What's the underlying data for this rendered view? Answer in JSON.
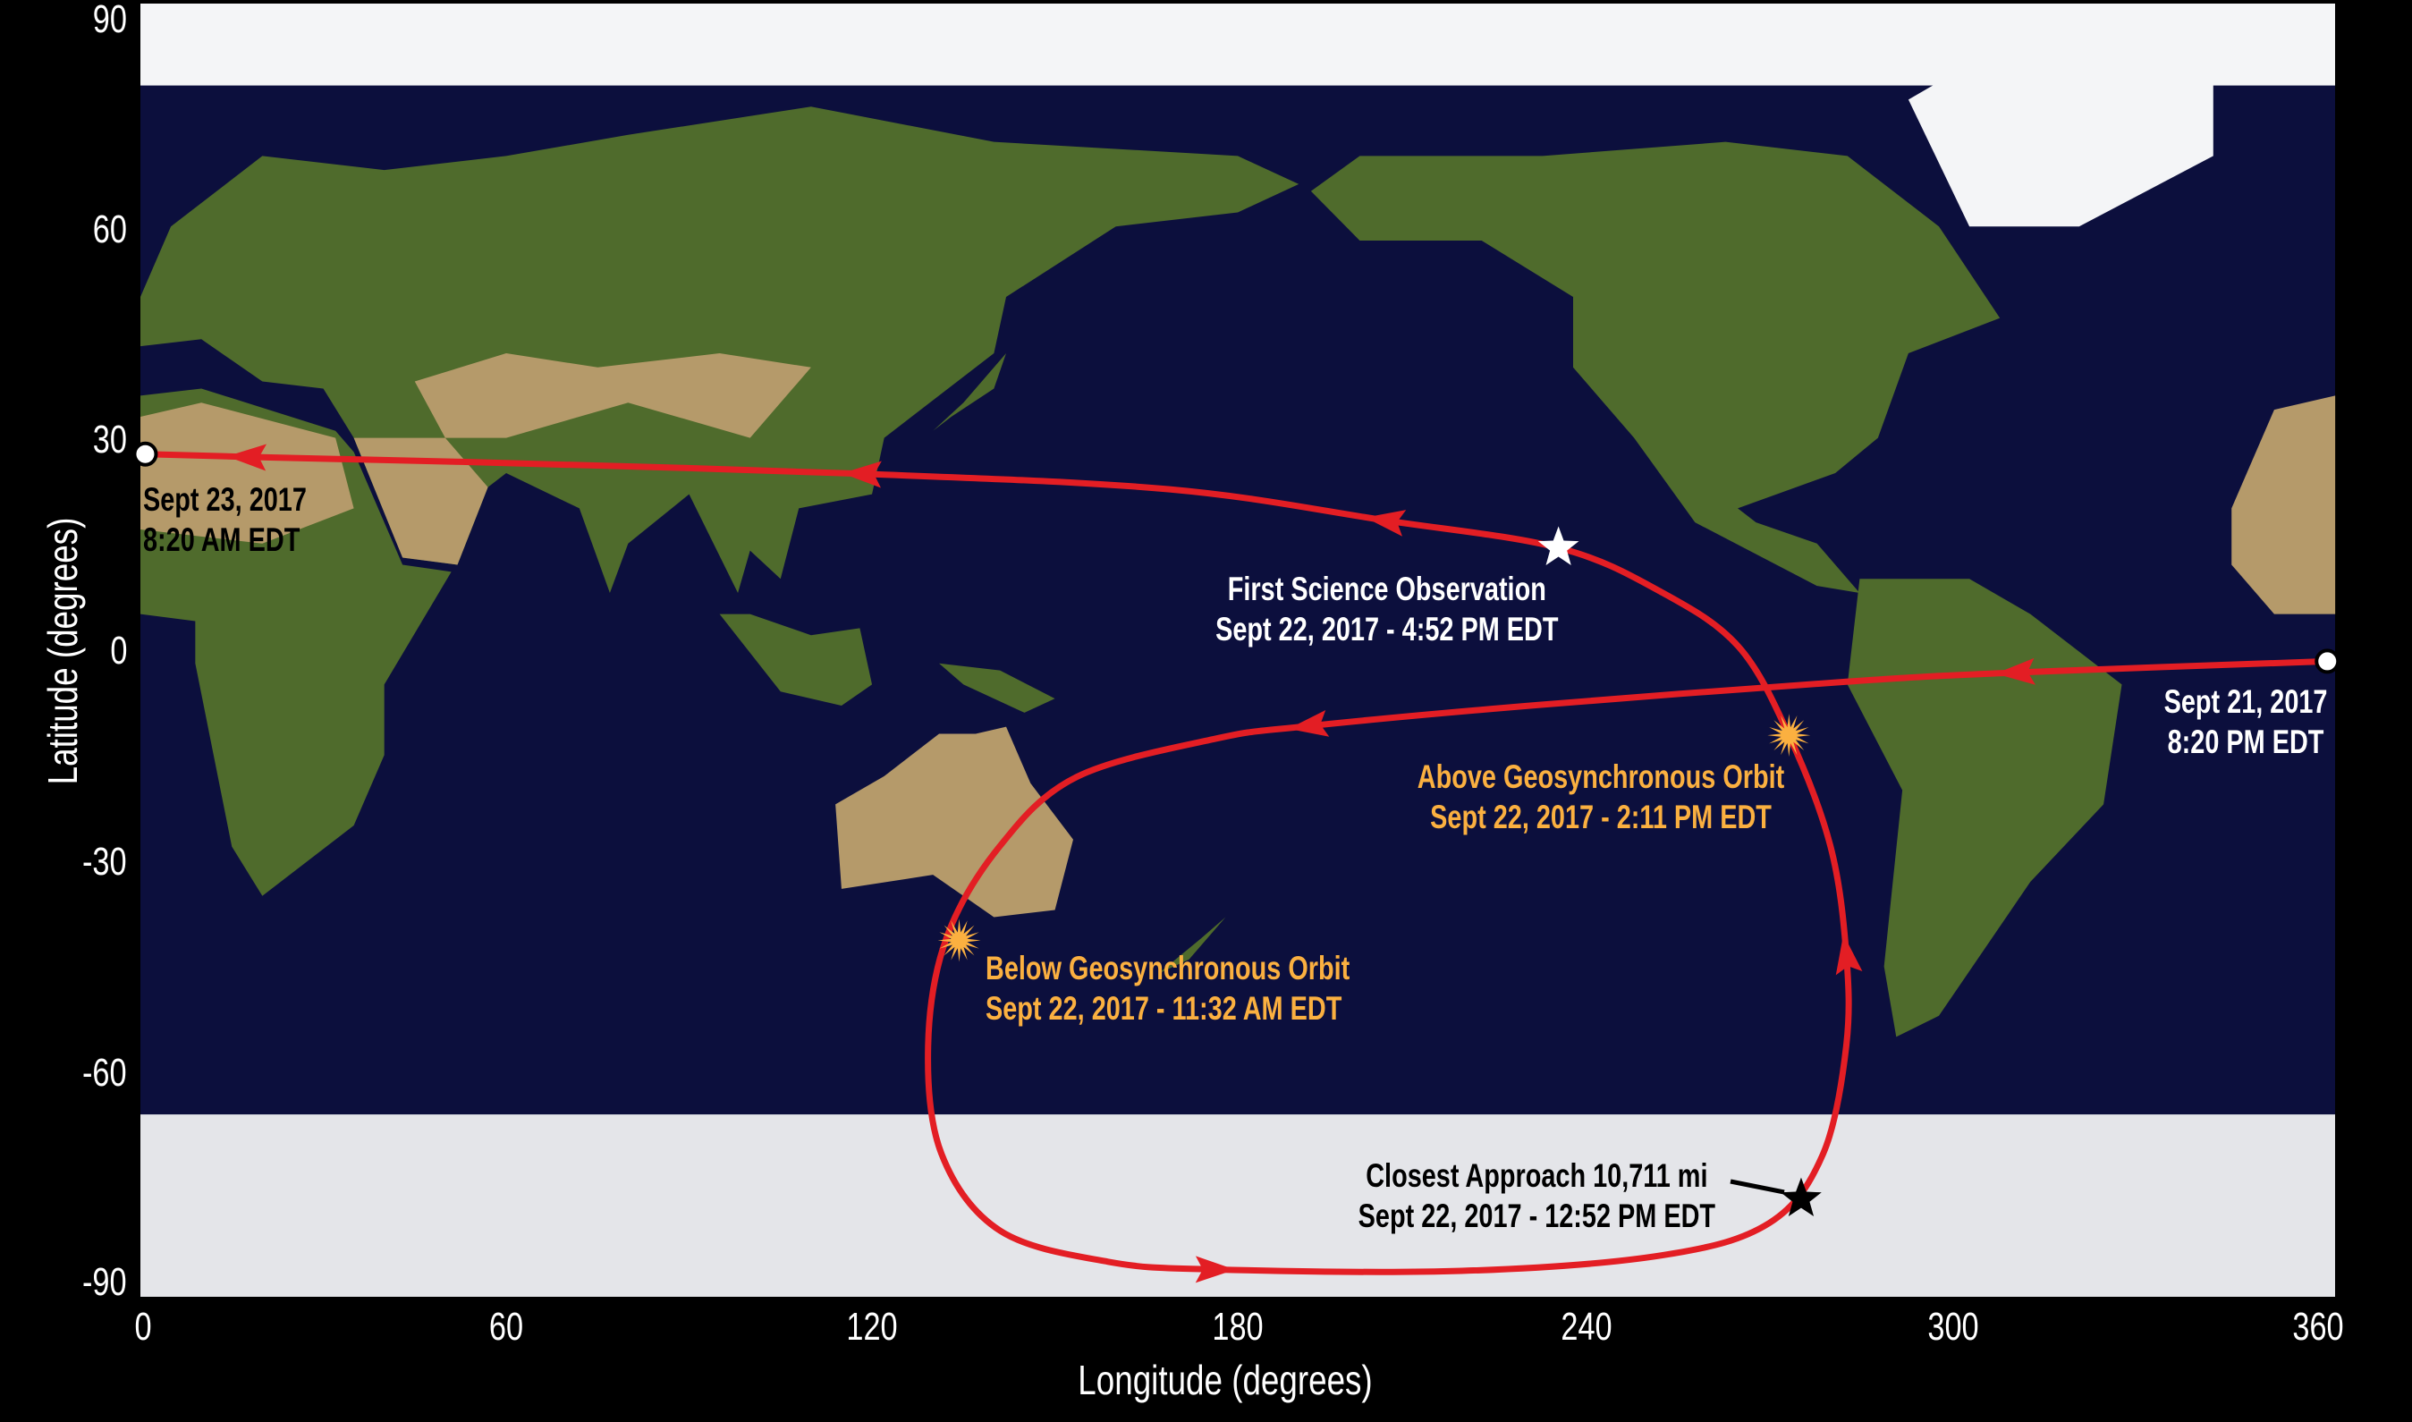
{
  "chart_data": {
    "type": "line",
    "title": "",
    "xlabel": "Longitude (degrees)",
    "ylabel": "Latitude (degrees)",
    "xlim": [
      0,
      360
    ],
    "ylim": [
      -90,
      90
    ],
    "xticks": [
      "0",
      "60",
      "120",
      "180",
      "240",
      "300",
      "360"
    ],
    "yticks": [
      "90",
      "60",
      "30",
      "0",
      "-30",
      "-60",
      "-90"
    ],
    "grid": false,
    "background": "satellite world map (equirectangular)",
    "track_color": "#e31e24",
    "track": {
      "lon": [
        358.7,
        307.5,
        279.8,
        229.3,
        191.5,
        176.3,
        153.6,
        141.0,
        132.2,
        129.2,
        131.4,
        141.0,
        158.7,
        176.3,
        216.7,
        249.5,
        267.2,
        276.0,
        279.8,
        279.8,
        277.2,
        270.4,
        262.1,
        249.5,
        232.6,
        204.1,
        168.8,
        118.3,
        52.7,
        17.4,
        0.8
      ],
      "lat": [
        -1.7,
        -3.3,
        -4.6,
        -7.9,
        -10.9,
        -12.7,
        -18.1,
        -27.9,
        -41.0,
        -56.3,
        -71.6,
        -82.5,
        -86.9,
        -88.0,
        -88.2,
        -86.0,
        -81.4,
        -71.6,
        -56.3,
        -43.2,
        -27.9,
        -12.2,
        0.4,
        8.1,
        14.4,
        18.3,
        22.7,
        24.9,
        26.6,
        27.3,
        27.7
      ],
      "arrow_indices": [
        1,
        4,
        13,
        19,
        25,
        27,
        29
      ]
    },
    "events": [
      {
        "id": "start",
        "marker": "open-circle",
        "lon": 358.7,
        "lat": -1.7,
        "lines": [
          "Sept 21, 2017",
          "8:20 PM EDT"
        ],
        "color": "#ffffff"
      },
      {
        "id": "below-geo",
        "marker": "orange-burst",
        "lon": 134.3,
        "lat": -41.3,
        "lines": [
          "Below Geosynchronous Orbit",
          "Sept 22, 2017 - 11:32 AM EDT"
        ],
        "color": "#fbb040"
      },
      {
        "id": "closest",
        "marker": "black-star",
        "lon": 272.4,
        "lat": -78.0,
        "lines": [
          "Closest Approach 10,711 mi",
          "Sept 22, 2017 - 12:52 PM EDT"
        ],
        "color": "#000000"
      },
      {
        "id": "above-geo",
        "marker": "orange-burst",
        "lon": 270.4,
        "lat": -12.2,
        "lines": [
          "Above Geosynchronous Orbit",
          "Sept 22, 2017 - 2:11 PM EDT"
        ],
        "color": "#fbb040"
      },
      {
        "id": "first-science",
        "marker": "white-star",
        "lon": 232.6,
        "lat": 14.4,
        "lines": [
          "First Science Observation",
          "Sept 22, 2017 - 4:52 PM EDT"
        ],
        "color": "#ffffff"
      },
      {
        "id": "end",
        "marker": "open-circle",
        "lon": 0.8,
        "lat": 27.7,
        "lines": [
          "Sept 23, 2017",
          "8:20 AM EDT"
        ],
        "color": "#000000"
      }
    ]
  }
}
